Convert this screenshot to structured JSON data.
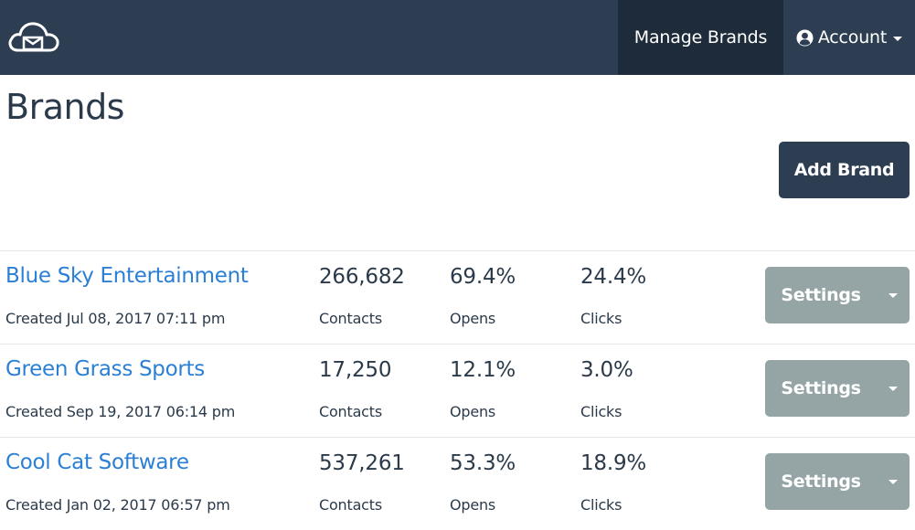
{
  "navbar": {
    "logo_icon": "cloud-envelope-icon",
    "manage_brands_label": "Manage Brands",
    "account_icon": "user-circle-icon",
    "account_label": "Account",
    "colors": {
      "bar": "#2d3e52",
      "active": "#1e2b3a"
    }
  },
  "page": {
    "title": "Brands",
    "add_brand_label": "Add Brand"
  },
  "brands": [
    {
      "name": "Blue Sky Entertainment",
      "created": "Created Jul 08, 2017 07:11 pm",
      "contacts": "266,682",
      "contacts_label": "Contacts",
      "opens": "69.4%",
      "opens_label": "Opens",
      "clicks": "24.4%",
      "clicks_label": "Clicks",
      "settings_label": "Settings"
    },
    {
      "name": "Green Grass Sports",
      "created": "Created Sep 19, 2017 06:14 pm",
      "contacts": "17,250",
      "contacts_label": "Contacts",
      "opens": "12.1%",
      "opens_label": "Opens",
      "clicks": "3.0%",
      "clicks_label": "Clicks",
      "settings_label": "Settings"
    },
    {
      "name": "Cool Cat Software",
      "created": "Created Jan 02, 2017 06:57 pm",
      "contacts": "537,261",
      "contacts_label": "Contacts",
      "opens": "53.3%",
      "opens_label": "Opens",
      "clicks": "18.9%",
      "clicks_label": "Clicks",
      "settings_label": "Settings"
    }
  ],
  "colors": {
    "link": "#2b7fd4",
    "text": "#2b3a4a",
    "settings_button": "#95a5a6",
    "primary_button": "#2d3e52"
  }
}
